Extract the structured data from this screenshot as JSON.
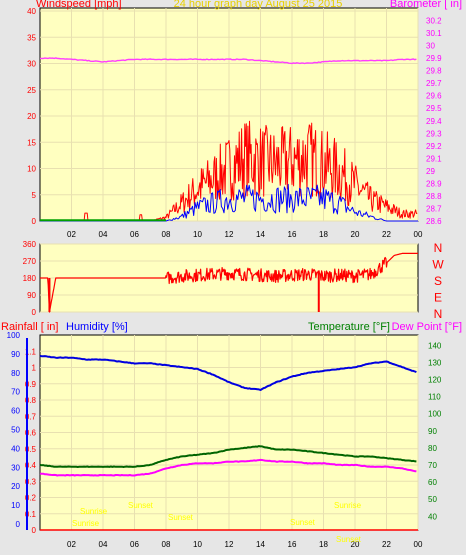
{
  "colors": {
    "background": "#e6e6e6",
    "plot_bg": "#ffffc0",
    "wind": "#ff0000",
    "gust_base": "#ff0000",
    "avg_wind": "#0000ff",
    "wind_green": "#00a000",
    "barometer": "#ff3cff",
    "direction": "#ff0000",
    "humidity": "#0000e0",
    "temperature": "#006400",
    "dew_point": "#ff00ff",
    "rainfall": "#ff0000",
    "sun_events": "#ffff00",
    "axis_left": "#ff0000",
    "axis_right": "#ff00ff",
    "axis_humidity": "#0000ff",
    "axis_temp": "#008000",
    "grid": "#e8e0b0"
  },
  "chart_data": [
    {
      "type": "line",
      "title": "24 hour graph day   August 25 2015",
      "ylabel": "Windspeed [mph]",
      "y2label": "Barometer [ in]",
      "x_ticks": [
        "02",
        "04",
        "06",
        "08",
        "10",
        "12",
        "14",
        "16",
        "18",
        "20",
        "22",
        "00"
      ],
      "ylim": [
        0,
        40
      ],
      "y_ticks": [
        0,
        5,
        10,
        15,
        20,
        25,
        30,
        35,
        40
      ],
      "y2lim": [
        28.6,
        30.3
      ],
      "y2_ticks": [
        "28.6",
        "28.7",
        "28.8",
        "28.9",
        "29",
        "29.1",
        "29.2",
        "29.3",
        "29.4",
        "29.5",
        "29.6",
        "29.7",
        "29.8",
        "29.9",
        "30",
        "30.1",
        "30.2"
      ],
      "series": [
        {
          "name": "Barometer [ in]",
          "axis": "right",
          "x": [
            0,
            1,
            2,
            3,
            4,
            5,
            6,
            7,
            8,
            9,
            10,
            11,
            12,
            13,
            14,
            15,
            16,
            17,
            18,
            19,
            20,
            21,
            22,
            23,
            24
          ],
          "values": [
            29.9,
            29.9,
            29.89,
            29.88,
            29.87,
            29.88,
            29.89,
            29.89,
            29.89,
            29.89,
            29.89,
            29.89,
            29.89,
            29.89,
            29.88,
            29.87,
            29.86,
            29.86,
            29.87,
            29.88,
            29.88,
            29.88,
            29.88,
            29.89,
            29.89
          ]
        },
        {
          "name": "Windspeed [mph]",
          "axis": "left",
          "x": [
            0,
            1,
            2,
            3,
            4,
            5,
            6,
            7,
            8,
            9,
            10,
            11,
            12,
            13,
            14,
            15,
            16,
            17,
            18,
            19,
            20,
            21,
            22,
            23,
            24
          ],
          "values": [
            0,
            0,
            0,
            0,
            0,
            0,
            0,
            0,
            1,
            5,
            9,
            12,
            15,
            18,
            17,
            16,
            17,
            18,
            16,
            14,
            10,
            6,
            4,
            2,
            2
          ]
        },
        {
          "name": "Avg wind [mph]",
          "axis": "left",
          "x": [
            0,
            1,
            2,
            3,
            4,
            5,
            6,
            7,
            8,
            9,
            10,
            11,
            12,
            13,
            14,
            15,
            16,
            17,
            18,
            19,
            20,
            21,
            22,
            23,
            24
          ],
          "values": [
            0,
            0,
            0,
            0,
            0,
            0,
            0,
            0,
            0,
            1,
            3,
            4,
            5,
            5,
            5,
            5,
            5,
            5,
            5,
            4,
            2,
            1,
            0,
            0,
            0
          ]
        }
      ]
    },
    {
      "type": "line",
      "ylabel": "",
      "ylim": [
        0,
        360
      ],
      "y_ticks": [
        0,
        90,
        180,
        270,
        360
      ],
      "compass": [
        "N",
        "W",
        "S",
        "E",
        "N"
      ],
      "series": [
        {
          "name": "Wind direction",
          "x": [
            0,
            0.5,
            0.6,
            1,
            2,
            3,
            4,
            5,
            6,
            7,
            8,
            9,
            10,
            11,
            12,
            13,
            14,
            15,
            16,
            17,
            18,
            19,
            20,
            21,
            22,
            22.5,
            23,
            24
          ],
          "values": [
            180,
            180,
            0,
            180,
            180,
            180,
            180,
            180,
            180,
            180,
            180,
            190,
            195,
            200,
            205,
            200,
            195,
            190,
            195,
            200,
            190,
            195,
            190,
            200,
            260,
            300,
            310,
            310
          ]
        }
      ]
    },
    {
      "type": "line",
      "labels": {
        "rain": "Rainfall [ in]",
        "humidity": "Humidity [%]",
        "temperature": "Temperature [°F]",
        "dew_point": "Dew Point [°F]"
      },
      "x_ticks": [
        "02",
        "04",
        "06",
        "08",
        "10",
        "12",
        "14",
        "16",
        "18",
        "20",
        "22",
        "00"
      ],
      "rain_ticks": [
        "0",
        "0.1",
        "0.2",
        "0.3",
        "0.4",
        "0.5",
        "0.6",
        "0.7",
        "0.8",
        "0.9",
        "1",
        "1.1"
      ],
      "rain_lim": [
        0,
        1.2
      ],
      "humidity_ticks": [
        "0",
        "10",
        "20",
        "30",
        "40",
        "50",
        "60",
        "70",
        "80",
        "90",
        "100"
      ],
      "temp_ticks": [
        "40",
        "50",
        "60",
        "70",
        "80",
        "90",
        "100",
        "110",
        "120",
        "130",
        "140"
      ],
      "temp_lim": [
        32,
        146
      ],
      "sun_events": [
        "Sunrise",
        "Sunset",
        "Sunrise",
        "Sunset",
        "Sunset",
        "Sunrise",
        "Sunset"
      ],
      "series": [
        {
          "name": "Humidity [%]",
          "axis": "humidity",
          "x": [
            0,
            1,
            2,
            3,
            4,
            5,
            6,
            7,
            8,
            9,
            10,
            11,
            12,
            13,
            14,
            15,
            16,
            17,
            18,
            19,
            20,
            21,
            22,
            23,
            24
          ],
          "values": [
            89,
            88,
            88,
            87,
            87,
            86,
            85,
            85,
            84,
            83,
            82,
            79,
            75,
            72,
            71,
            75,
            78,
            80,
            81,
            82,
            83,
            85,
            86,
            83,
            80
          ]
        },
        {
          "name": "Temperature [°F]",
          "axis": "temp",
          "x": [
            0,
            1,
            2,
            3,
            4,
            5,
            6,
            7,
            8,
            9,
            10,
            11,
            12,
            13,
            14,
            15,
            16,
            17,
            18,
            19,
            20,
            21,
            22,
            23,
            24
          ],
          "values": [
            70,
            69,
            69,
            69,
            69,
            69,
            69,
            70,
            73,
            75,
            76,
            77,
            79,
            80,
            81,
            79,
            79,
            78,
            77,
            76,
            75,
            75,
            74,
            73,
            72
          ]
        },
        {
          "name": "Dew Point [°F]",
          "axis": "temp",
          "x": [
            0,
            1,
            2,
            3,
            4,
            5,
            6,
            7,
            8,
            9,
            10,
            11,
            12,
            13,
            14,
            15,
            16,
            17,
            18,
            19,
            20,
            21,
            22,
            23,
            24
          ],
          "values": [
            65,
            64,
            64,
            64,
            64,
            64,
            64,
            65,
            68,
            70,
            71,
            71,
            72,
            72,
            73,
            72,
            72,
            71,
            71,
            70,
            70,
            69,
            69,
            68,
            66
          ]
        },
        {
          "name": "Rainfall [ in]",
          "axis": "rain",
          "x": [
            0,
            24
          ],
          "values": [
            0,
            0
          ]
        }
      ]
    }
  ]
}
